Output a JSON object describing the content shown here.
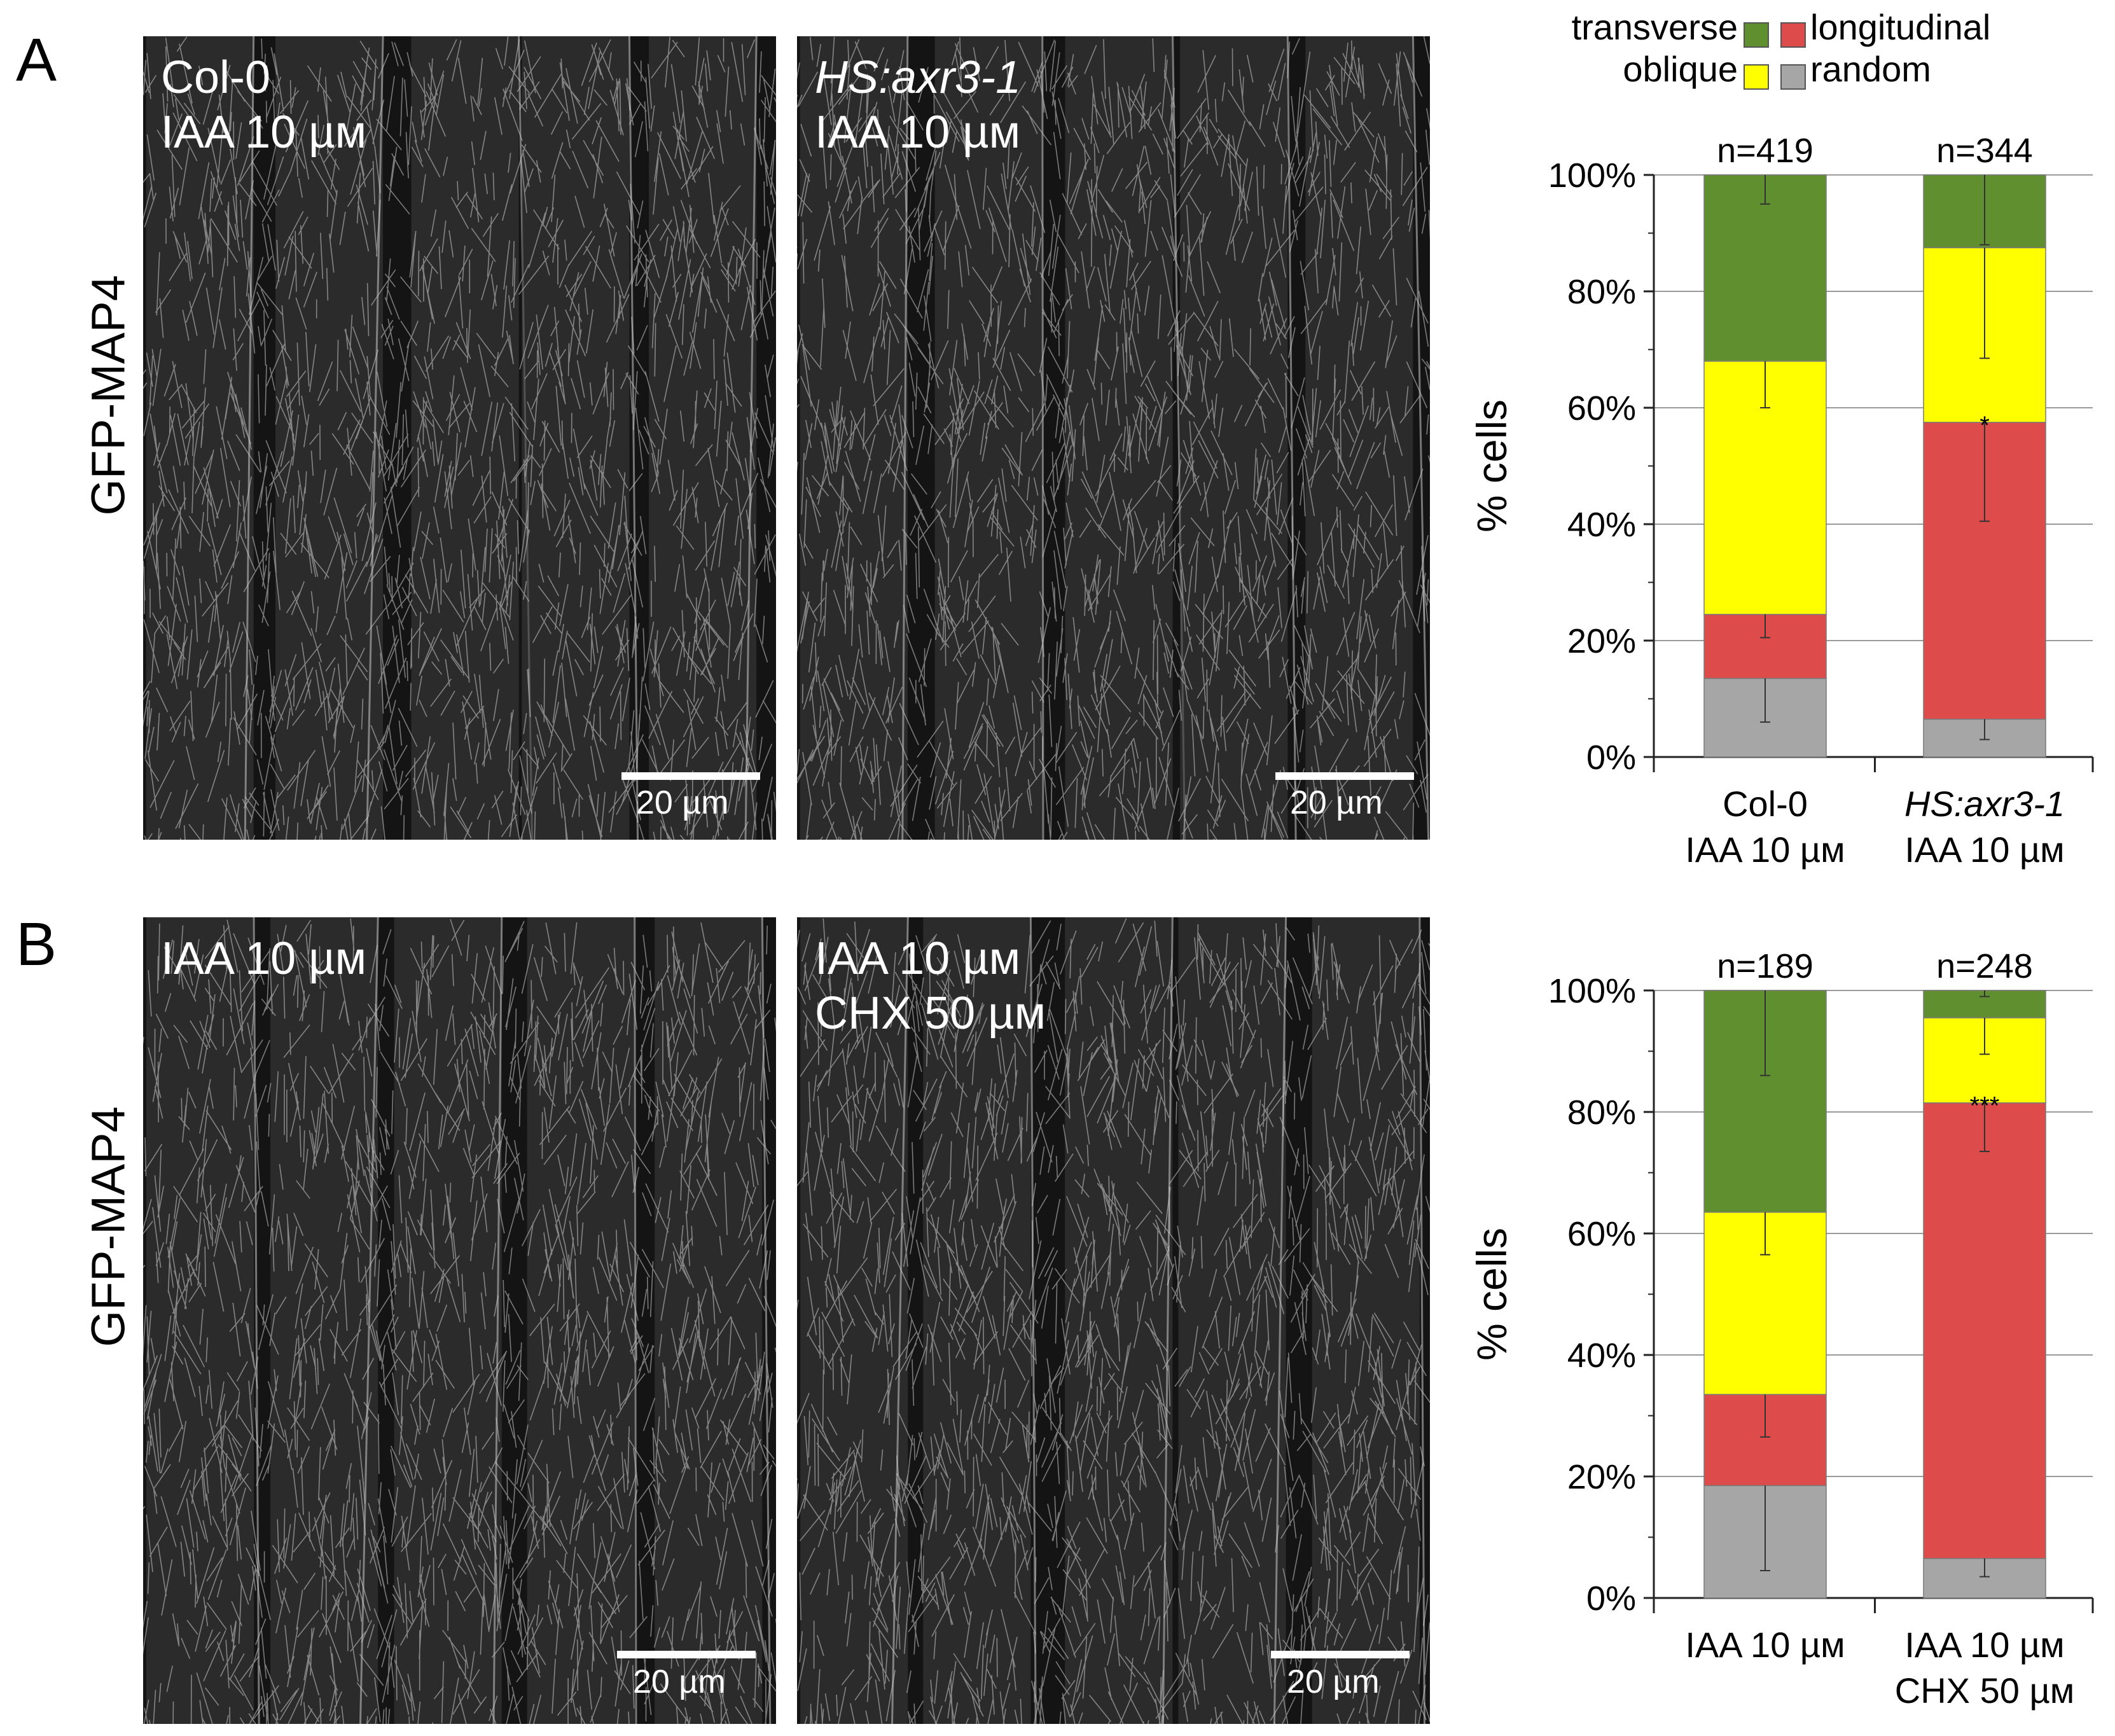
{
  "figure": {
    "panel_a": {
      "letter": "A",
      "row_label": "GFP-MAP4",
      "image_left": {
        "line1": "Col-0",
        "line2": "IAA 10 µм",
        "scale": "20 µm"
      },
      "image_right": {
        "line1": "HS:axr3-1",
        "line2": "IAA 10 µм",
        "scale": "20 µm"
      }
    },
    "panel_b": {
      "letter": "B",
      "row_label": "GFP-MAP4",
      "image_left": {
        "line1": "IAA 10 µм",
        "scale": "20 µm"
      },
      "image_right": {
        "line1": "IAA 10 µм",
        "line2": "CHX 50 µм",
        "scale": "20 µm"
      }
    }
  },
  "legend": {
    "items": [
      {
        "label": "transverse",
        "color": "#5f8f2f"
      },
      {
        "label": "longitudinal",
        "color": "#de4b4b"
      },
      {
        "label": "oblique",
        "color": "#ffff00"
      },
      {
        "label": "random",
        "color": "#a6a6a6"
      }
    ]
  },
  "chart_data": [
    {
      "type": "bar",
      "stacked": true,
      "ylabel": "% cells",
      "ylim": [
        0,
        100
      ],
      "yticks": [
        "0%",
        "20%",
        "40%",
        "60%",
        "80%",
        "100%"
      ],
      "grid": true,
      "categories": [
        {
          "line1": "Col-0",
          "line2": "IAA 10 µм",
          "italic": false
        },
        {
          "line1": "HS:axr3-1",
          "line2": "IAA 10 µм",
          "italic": true
        }
      ],
      "n_labels": [
        "n=419",
        "n=344"
      ],
      "series": [
        {
          "name": "random",
          "values": [
            13.5,
            6.5
          ],
          "errors": [
            7.5,
            3.5
          ]
        },
        {
          "name": "longitudinal",
          "values": [
            11,
            51
          ],
          "errors": [
            4,
            17
          ]
        },
        {
          "name": "oblique",
          "values": [
            43.5,
            30
          ],
          "errors": [
            8,
            19
          ]
        },
        {
          "name": "transverse",
          "values": [
            32,
            12.5
          ],
          "errors": [
            5,
            12
          ]
        }
      ],
      "annotations": [
        {
          "category": 1,
          "text": "*"
        }
      ]
    },
    {
      "type": "bar",
      "stacked": true,
      "ylabel": "% cells",
      "ylim": [
        0,
        100
      ],
      "yticks": [
        "0%",
        "20%",
        "40%",
        "60%",
        "80%",
        "100%"
      ],
      "grid": true,
      "categories": [
        {
          "line1": "IAA 10 µм",
          "line2": "",
          "italic": false
        },
        {
          "line1": "IAA 10 µм",
          "line2": "CHX 50 µм",
          "italic": false
        }
      ],
      "n_labels": [
        "n=189",
        "n=248"
      ],
      "series": [
        {
          "name": "random",
          "values": [
            18.5,
            6.5
          ],
          "errors": [
            14,
            3
          ]
        },
        {
          "name": "longitudinal",
          "values": [
            15,
            75
          ],
          "errors": [
            7,
            8
          ]
        },
        {
          "name": "oblique",
          "values": [
            30,
            14
          ],
          "errors": [
            7,
            6
          ]
        },
        {
          "name": "transverse",
          "values": [
            36.5,
            4.5
          ],
          "errors": [
            14,
            1
          ]
        }
      ],
      "annotations": [
        {
          "category": 1,
          "text": "***"
        }
      ]
    }
  ]
}
